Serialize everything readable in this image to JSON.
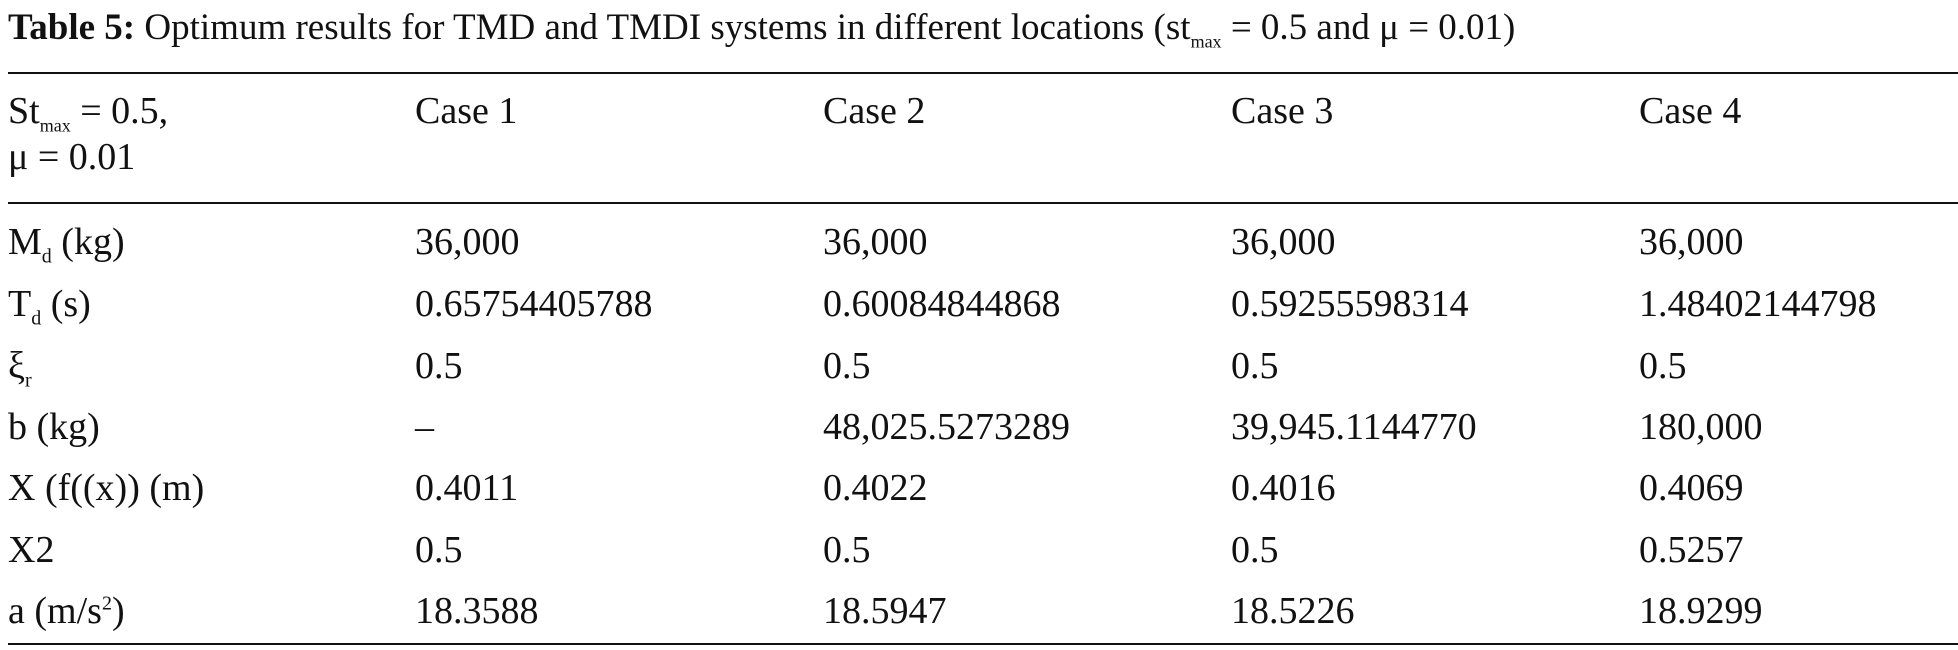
{
  "caption": {
    "label": "Table 5:",
    "text_before": " Optimum results for TMD and TMDI systems in different locations (st",
    "sub": "max",
    "text_after": " = 0.5 and μ = 0.01)"
  },
  "header": {
    "param_line1_prefix": "St",
    "param_line1_sub": "max",
    "param_line1_suffix": " = 0.5,",
    "param_line2": "μ = 0.01",
    "cases": [
      "Case 1",
      "Case 2",
      "Case 3",
      "Case 4"
    ]
  },
  "rows": [
    {
      "label_main": "M",
      "label_sub": "d",
      "label_rest": " (kg)",
      "values": [
        "36,000",
        "36,000",
        "36,000",
        "36,000"
      ]
    },
    {
      "label_main": "T",
      "label_sub": "d",
      "label_rest": " (s)",
      "values": [
        "0.65754405788",
        "0.60084844868",
        "0.59255598314",
        "1.48402144798"
      ]
    },
    {
      "label_main": "ξ",
      "label_sub": "r",
      "label_rest": "",
      "values": [
        "0.5",
        "0.5",
        "0.5",
        "0.5"
      ]
    },
    {
      "label_main": "b (kg)",
      "values": [
        "–",
        "48,025.5273289",
        "39,945.1144770",
        "180,000"
      ]
    },
    {
      "label_main": "X (f((x)) (m)",
      "values": [
        "0.4011",
        "0.4022",
        "0.4016",
        "0.4069"
      ]
    },
    {
      "label_main": "X2",
      "values": [
        "0.5",
        "0.5",
        "0.5",
        "0.5257"
      ]
    },
    {
      "label_main": "a (m/s",
      "label_sup": "2",
      "label_rest": ")",
      "values": [
        "18.3588",
        "18.5947",
        "18.5226",
        "18.9299"
      ]
    }
  ]
}
